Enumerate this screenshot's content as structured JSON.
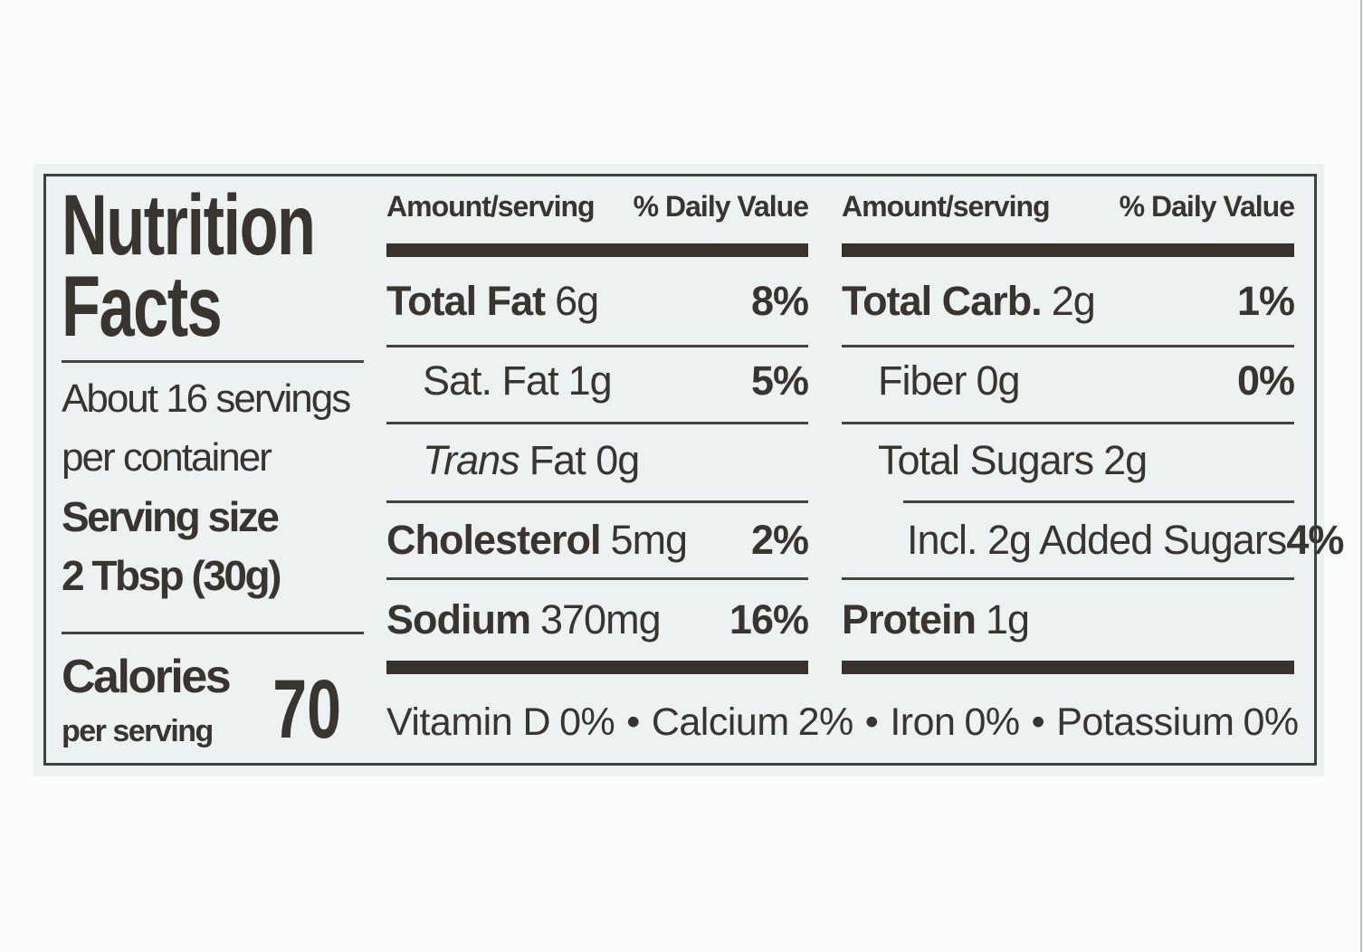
{
  "label": {
    "colors": {
      "page_background": "#fbfcfc",
      "label_background": "#ecf1f2",
      "ink": "#3a342e",
      "frame_border": "#3a453e",
      "thick_bar": "#39322c"
    },
    "title_line1": "Nutrition",
    "title_line2": "Facts",
    "servings_per_container_line1": "About 16 servings",
    "servings_per_container_line2": "per container",
    "serving_size_label": "Serving size",
    "serving_size_value": "2 Tbsp (30g)",
    "calories": {
      "label": "Calories",
      "sublabel": "per serving",
      "value": "70"
    },
    "columns": [
      {
        "header_amount": "Amount/serving",
        "header_dv": "% Daily Value",
        "rows": [
          {
            "label": "Total Fat",
            "value": "6g",
            "pct": "8%"
          },
          {
            "label": "Sat. Fat",
            "value": "1g",
            "pct": "5%"
          },
          {
            "label": "Trans",
            "value": "Fat 0g",
            "pct": ""
          },
          {
            "label": "Cholesterol",
            "value": "5mg",
            "pct": "2%"
          },
          {
            "label": "Sodium",
            "value": "370mg",
            "pct": "16%"
          }
        ]
      },
      {
        "header_amount": "Amount/serving",
        "header_dv": "% Daily Value",
        "rows": [
          {
            "label": "Total Carb.",
            "value": "2g",
            "pct": "1%"
          },
          {
            "label": "Fiber",
            "value": "0g",
            "pct": "0%"
          },
          {
            "label": "Total Sugars",
            "value": "2g",
            "pct": ""
          },
          {
            "label": "Incl. 2g Added Sugars",
            "value": "",
            "pct": "4%"
          },
          {
            "label": "Protein",
            "value": "1g",
            "pct": ""
          }
        ]
      }
    ],
    "footer": {
      "sep": "•",
      "items": [
        {
          "name": "Vitamin D",
          "pct": "0%"
        },
        {
          "name": "Calcium",
          "pct": "2%"
        },
        {
          "name": "Iron",
          "pct": "0%"
        },
        {
          "name": "Potassium",
          "pct": "0%"
        }
      ]
    }
  }
}
